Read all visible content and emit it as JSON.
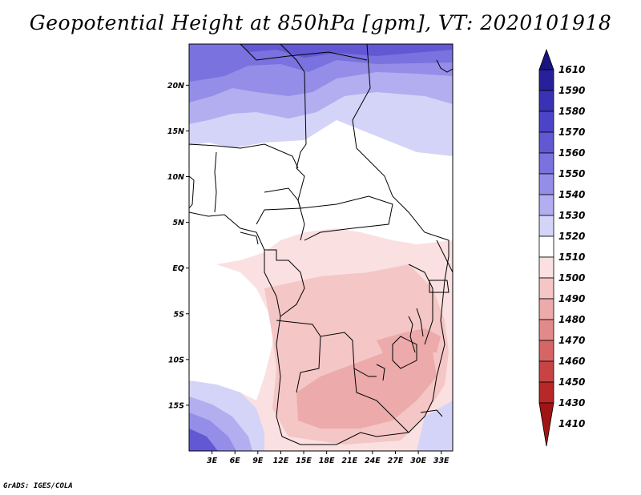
{
  "title": "Geopotential Height at 850hPa [gpm], VT: 2020101918",
  "credit": "GrADS: IGES/COLA",
  "map": {
    "lon_range": [
      0,
      34.5
    ],
    "lat_range": [
      -20,
      24.5
    ],
    "x_ticks": [
      "3E",
      "6E",
      "9E",
      "12E",
      "15E",
      "18E",
      "21E",
      "24E",
      "27E",
      "30E",
      "33E"
    ],
    "y_ticks": [
      "20N",
      "15N",
      "10N",
      "5N",
      "EQ",
      "5S",
      "10S",
      "15S"
    ]
  },
  "colorbar": {
    "labels": [
      "1610",
      "1590",
      "1580",
      "1570",
      "1560",
      "1550",
      "1540",
      "1530",
      "1520",
      "1510",
      "1500",
      "1490",
      "1480",
      "1470",
      "1460",
      "1450",
      "1430",
      "1410"
    ],
    "colors": [
      "#1a1480",
      "#28209a",
      "#3a32b4",
      "#4c44c8",
      "#6258d4",
      "#7a72de",
      "#948ee8",
      "#b2aef0",
      "#d4d4f8",
      "#ffffff",
      "#fae0e0",
      "#f4c6c6",
      "#ecaaaa",
      "#e28a8a",
      "#d66666",
      "#c84444",
      "#b82828",
      "#a01414"
    ]
  }
}
